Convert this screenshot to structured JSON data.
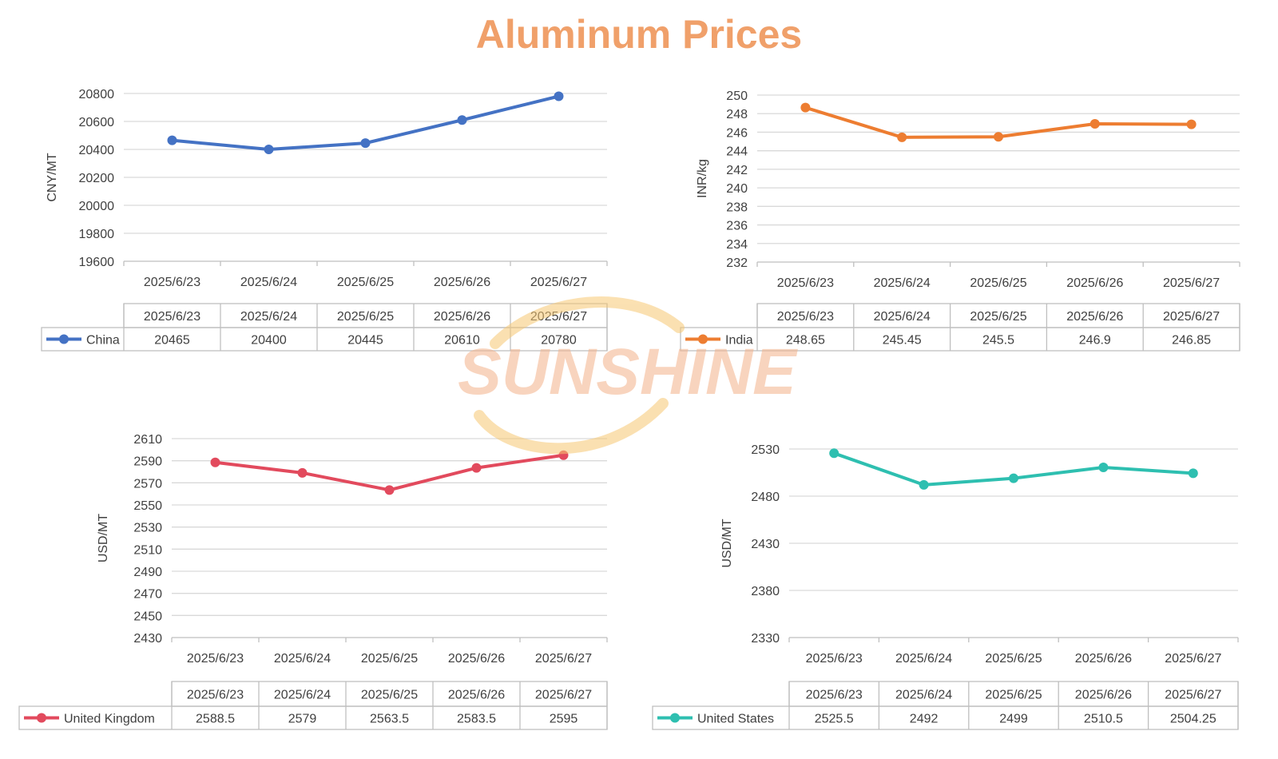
{
  "title": "Aluminum Prices",
  "watermark": "SUNSHINE",
  "colors": {
    "title": "#f0a06a",
    "china": "#4472c4",
    "india": "#ed7d31",
    "uk": "#e24a5d",
    "us": "#2ebfb0",
    "watermark_text": "#f4b28a",
    "watermark_swoosh": "#f7c873"
  },
  "chart_data": [
    {
      "type": "line",
      "categories": [
        "2025/6/23",
        "2025/6/24",
        "2025/6/25",
        "2025/6/26",
        "2025/6/27"
      ],
      "series": [
        {
          "name": "China",
          "values": [
            20465,
            20400,
            20445,
            20610,
            20780
          ],
          "color": "#4472c4"
        }
      ],
      "ylabel": "CNY/MT",
      "ylim": [
        19600,
        20800
      ],
      "yticks": [
        19600,
        19800,
        20000,
        20200,
        20400,
        20600,
        20800
      ],
      "grid": true,
      "data_table": true,
      "table_values": [
        "20465",
        "20400",
        "20445",
        "20610",
        "20780"
      ]
    },
    {
      "type": "line",
      "categories": [
        "2025/6/23",
        "2025/6/24",
        "2025/6/25",
        "2025/6/26",
        "2025/6/27"
      ],
      "series": [
        {
          "name": "India",
          "values": [
            248.65,
            245.45,
            245.5,
            246.9,
            246.85
          ],
          "color": "#ed7d31"
        }
      ],
      "ylabel": "INR/kg",
      "ylim": [
        232,
        250
      ],
      "yticks": [
        232,
        234,
        236,
        238,
        240,
        242,
        244,
        246,
        248,
        250
      ],
      "grid": true,
      "data_table": true,
      "table_values": [
        "248.65",
        "245.45",
        "245.5",
        "246.9",
        "246.85"
      ]
    },
    {
      "type": "line",
      "categories": [
        "2025/6/23",
        "2025/6/24",
        "2025/6/25",
        "2025/6/26",
        "2025/6/27"
      ],
      "series": [
        {
          "name": "United Kingdom",
          "values": [
            2588.5,
            2579,
            2563.5,
            2583.5,
            2595
          ],
          "color": "#e24a5d"
        }
      ],
      "ylabel": "USD/MT",
      "ylim": [
        2430,
        2610
      ],
      "yticks": [
        2430,
        2450,
        2470,
        2490,
        2510,
        2530,
        2550,
        2570,
        2590,
        2610
      ],
      "grid": true,
      "data_table": true,
      "table_values": [
        "2588.5",
        "2579",
        "2563.5",
        "2583.5",
        "2595"
      ]
    },
    {
      "type": "line",
      "categories": [
        "2025/6/23",
        "2025/6/24",
        "2025/6/25",
        "2025/6/26",
        "2025/6/27"
      ],
      "series": [
        {
          "name": "United States",
          "values": [
            2525.5,
            2492,
            2499,
            2510.5,
            2504.25
          ],
          "color": "#2ebfb0"
        }
      ],
      "ylabel": "USD/MT",
      "ylim": [
        2330,
        2530
      ],
      "yticks": [
        2330,
        2380,
        2430,
        2480,
        2530
      ],
      "grid": true,
      "data_table": true,
      "table_values": [
        "2525.5",
        "2492",
        "2499",
        "2510.5",
        "2504.25"
      ]
    }
  ]
}
